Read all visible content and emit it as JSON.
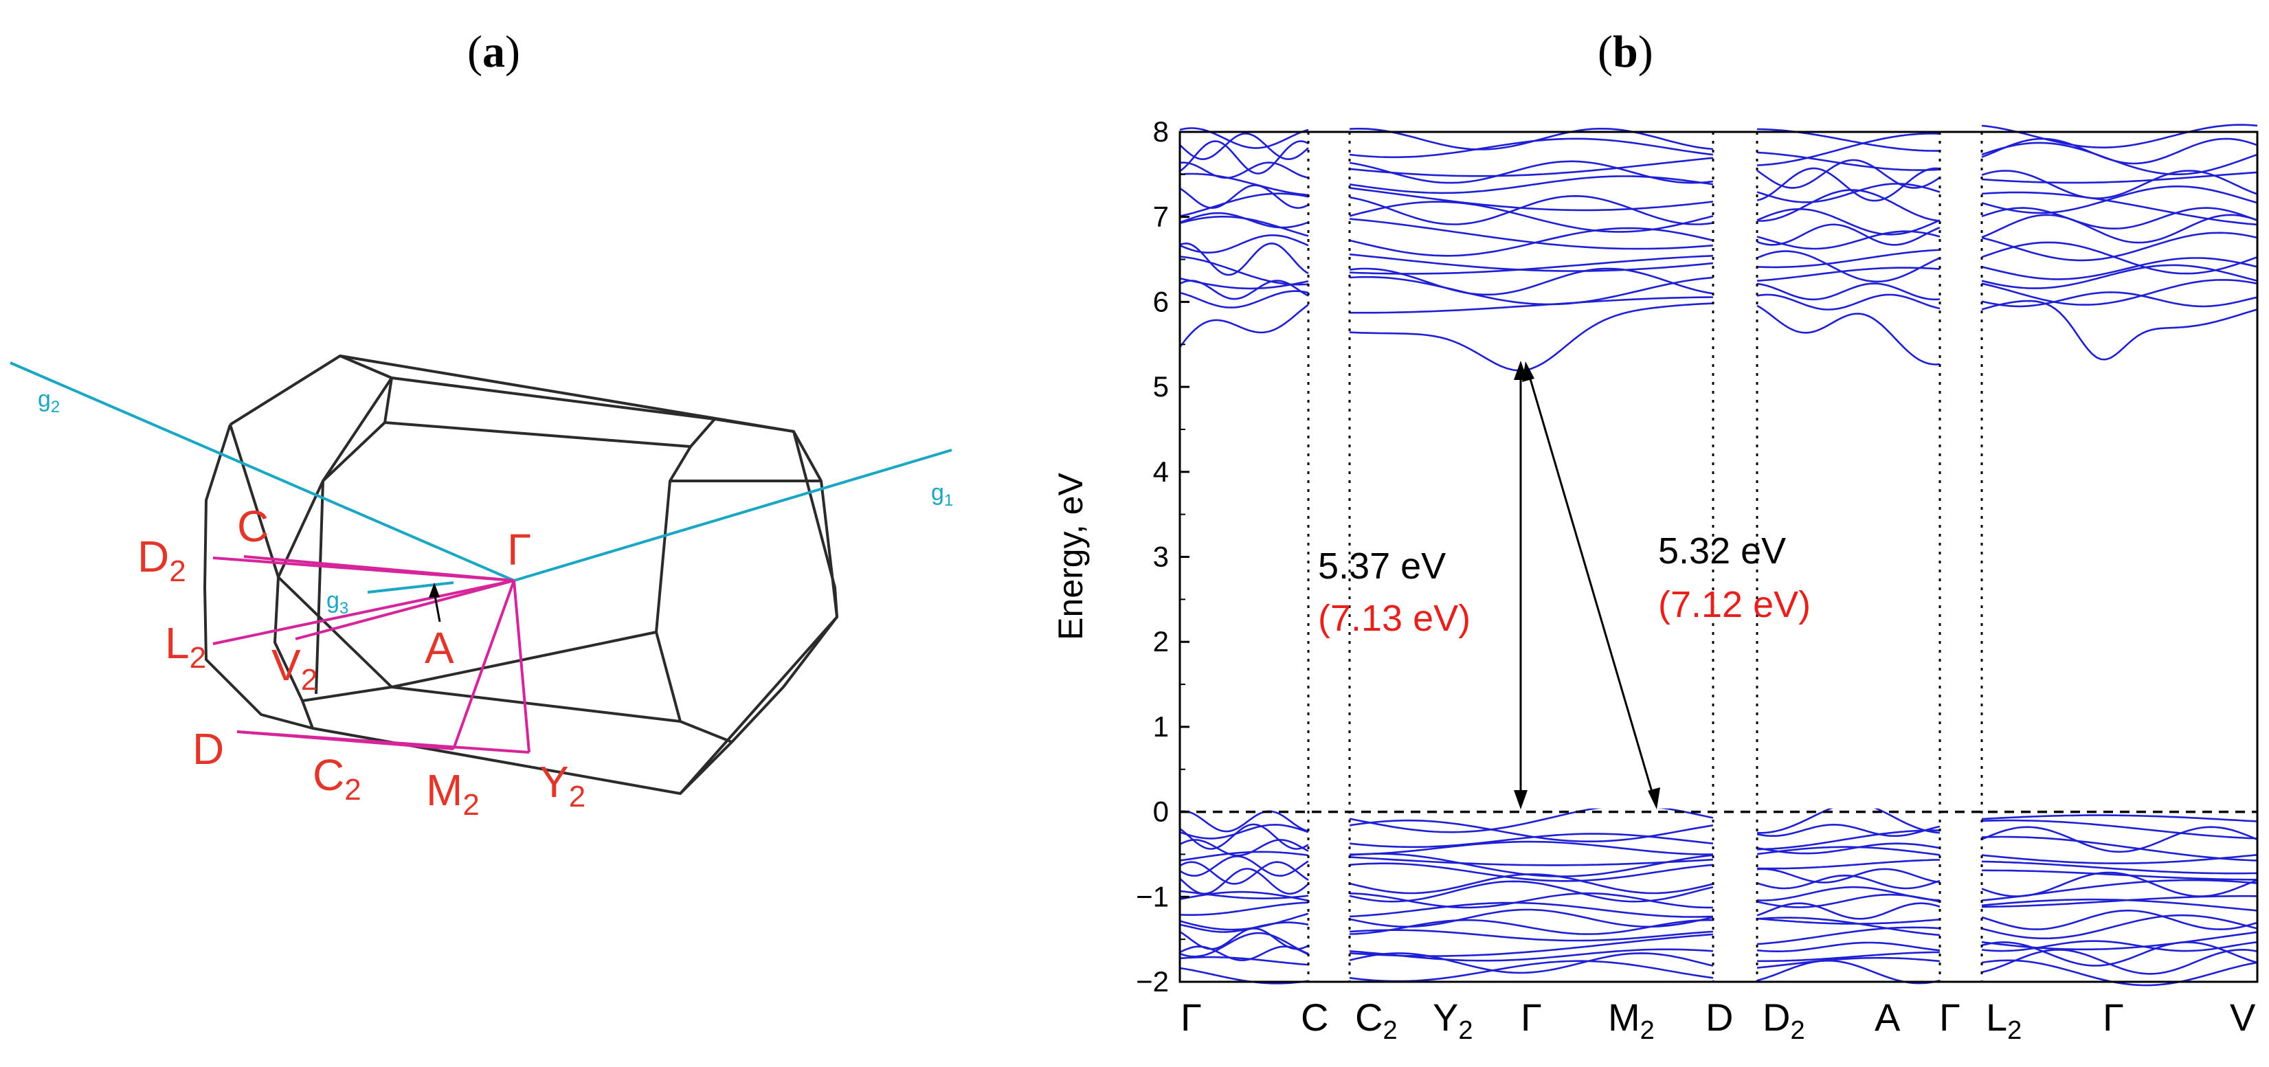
{
  "panels": {
    "a_label": "a",
    "b_label": "b"
  },
  "brillouin_zone": {
    "axes": [
      "g2",
      "g1",
      "g3"
    ],
    "points": [
      "C",
      "Γ",
      "D2",
      "g3",
      "A",
      "L2",
      "V2",
      "D",
      "C2",
      "M2",
      "Y2"
    ]
  },
  "colors": {
    "band": "#1f1fd6",
    "axis": "#1aa7c4",
    "kpath": "#d6259a",
    "kpoint_label": "#e2362a",
    "direct_gap_text": "#000000",
    "hse_text": "#e8201b"
  },
  "chart_data": {
    "type": "line",
    "title": "",
    "xlabel": "",
    "ylabel": "Energy, eV",
    "ylim": [
      -2,
      8
    ],
    "yticks": [
      -2,
      -1,
      0,
      1,
      2,
      3,
      4,
      5,
      6,
      7,
      8
    ],
    "fermi_level": 0,
    "segments": [
      {
        "from": "Γ",
        "to": "C"
      },
      {
        "from": "C2",
        "to": "Y2",
        "via": [
          "Γ",
          "M2"
        ],
        "end": "D"
      },
      {
        "from": "D2",
        "to": "A",
        "end": "Γ"
      },
      {
        "from": "L2",
        "to": "Γ",
        "end": "V"
      }
    ],
    "k_labels": [
      "Γ",
      "C",
      "C2",
      "Y2",
      "Γ",
      "M2",
      "D",
      "D2",
      "A",
      "Γ",
      "L2",
      "Γ",
      "V"
    ],
    "annotations": [
      {
        "value": "5.37 eV",
        "hse": "(7.13 eV)",
        "kind": "direct gap at Γ"
      },
      {
        "value": "5.32 eV",
        "hse": "(7.12 eV)",
        "kind": "indirect gap"
      }
    ],
    "gaps": {
      "direct_eV": 5.37,
      "indirect_eV": 5.32,
      "cbm_eV": 5.33,
      "vbm_eV": 0
    }
  }
}
